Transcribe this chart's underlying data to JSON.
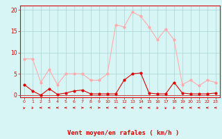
{
  "hours": [
    0,
    1,
    2,
    3,
    4,
    5,
    6,
    7,
    8,
    9,
    10,
    11,
    12,
    13,
    14,
    15,
    16,
    17,
    18,
    19,
    20,
    21,
    22,
    23
  ],
  "vent_moyen": [
    2.5,
    1,
    0,
    1.5,
    0.2,
    0.5,
    1,
    1.2,
    0.3,
    0.3,
    0.3,
    0.3,
    3.5,
    5,
    5.2,
    0.5,
    0.3,
    0.3,
    3,
    0.5,
    0.3,
    0.3,
    0.3,
    0.5
  ],
  "rafales": [
    8.5,
    8.5,
    3,
    6,
    2.5,
    5,
    5,
    5,
    3.5,
    3.5,
    5,
    16.5,
    16,
    19.5,
    18.5,
    16,
    13,
    15.5,
    13,
    2.5,
    3.5,
    2.2,
    3.5,
    3
  ],
  "wind_dirs": [
    210,
    225,
    270,
    270,
    270,
    270,
    270,
    90,
    45,
    90,
    270,
    270,
    270,
    270,
    270,
    270,
    225,
    210,
    225,
    270,
    270,
    270,
    270,
    270
  ],
  "color_moyen": "#dd0000",
  "color_rafales": "#ffaaaa",
  "bg_color": "#d8f5f5",
  "grid_color": "#aad4d4",
  "xlabel": "Vent moyen/en rafales ( km/h )",
  "ylabel_ticks": [
    0,
    5,
    10,
    15,
    20
  ],
  "ylim": [
    -0.5,
    21
  ],
  "xlim": [
    -0.5,
    23.5
  ]
}
